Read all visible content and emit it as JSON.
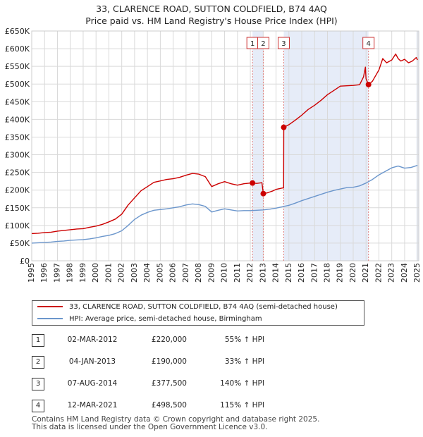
{
  "chart_data": {
    "type": "line",
    "title": "33, CLARENCE ROAD, SUTTON COLDFIELD, B74 4AQ",
    "subtitle": "Price paid vs. HM Land Registry's House Price Index (HPI)",
    "xlabel": "",
    "ylabel": "",
    "xlim": [
      1995,
      2025.1
    ],
    "ylim": [
      0,
      650000
    ],
    "x_ticks": [
      1995,
      1996,
      1997,
      1998,
      1999,
      2000,
      2001,
      2002,
      2003,
      2004,
      2005,
      2006,
      2007,
      2008,
      2009,
      2010,
      2011,
      2012,
      2013,
      2014,
      2015,
      2016,
      2017,
      2018,
      2019,
      2020,
      2021,
      2022,
      2023,
      2024,
      2025
    ],
    "y_ticks": [
      0,
      50000,
      100000,
      150000,
      200000,
      250000,
      300000,
      350000,
      400000,
      450000,
      500000,
      550000,
      600000,
      650000
    ],
    "y_tick_labels": [
      "£0",
      "£50K",
      "£100K",
      "£150K",
      "£200K",
      "£250K",
      "£300K",
      "£350K",
      "£400K",
      "£450K",
      "£500K",
      "£550K",
      "£600K",
      "£650K"
    ],
    "grid": true,
    "shaded_regions": [
      [
        2012.17,
        2013.01
      ],
      [
        2014.6,
        2021.19
      ],
      [
        2024.92,
        2025.1
      ]
    ],
    "series": [
      {
        "name": "33, CLARENCE ROAD, SUTTON COLDFIELD, B74 4AQ (semi-detached house)",
        "color": "#cc0000",
        "x": [
          1995.0,
          1995.5,
          1996.0,
          1996.5,
          1997.0,
          1997.5,
          1998.0,
          1998.5,
          1999.0,
          1999.5,
          2000.0,
          2000.5,
          2001.0,
          2001.5,
          2002.0,
          2002.5,
          2003.0,
          2003.5,
          2004.0,
          2004.5,
          2005.0,
          2005.5,
          2006.0,
          2006.5,
          2007.0,
          2007.5,
          2008.0,
          2008.5,
          2009.0,
          2009.5,
          2010.0,
          2010.5,
          2011.0,
          2011.5,
          2012.0,
          2012.17,
          2012.5,
          2012.9,
          2013.01,
          2013.3,
          2013.7,
          2014.0,
          2014.5,
          2014.59,
          2014.6,
          2015.0,
          2015.5,
          2016.0,
          2016.5,
          2017.0,
          2017.5,
          2018.0,
          2018.5,
          2019.0,
          2019.5,
          2020.0,
          2020.5,
          2020.8,
          2020.95,
          2021.0,
          2021.19,
          2021.5,
          2022.0,
          2022.3,
          2022.6,
          2023.0,
          2023.3,
          2023.5,
          2023.7,
          2024.0,
          2024.3,
          2024.6,
          2024.9,
          2025.0
        ],
        "values": [
          77000,
          78000,
          80000,
          81000,
          84000,
          86000,
          88000,
          90000,
          91000,
          95000,
          98000,
          103000,
          110000,
          118000,
          132000,
          158000,
          178000,
          198000,
          210000,
          222000,
          226000,
          230000,
          232000,
          236000,
          242000,
          247000,
          245000,
          238000,
          210000,
          218000,
          224000,
          218000,
          214000,
          218000,
          220000,
          220000,
          219000,
          221000,
          190000,
          192000,
          197000,
          202000,
          206000,
          206000,
          377500,
          385000,
          398000,
          412000,
          428000,
          440000,
          454000,
          470000,
          482000,
          494000,
          495000,
          496000,
          498000,
          520000,
          548000,
          515000,
          498500,
          508000,
          540000,
          572000,
          560000,
          568000,
          585000,
          572000,
          565000,
          570000,
          560000,
          565000,
          575000,
          568000
        ]
      },
      {
        "name": "HPI: Average price, semi-detached house, Birmingham",
        "color": "#6b96cc",
        "x": [
          1995.0,
          1995.5,
          1996.0,
          1996.5,
          1997.0,
          1997.5,
          1998.0,
          1998.5,
          1999.0,
          1999.5,
          2000.0,
          2000.5,
          2001.0,
          2001.5,
          2002.0,
          2002.5,
          2003.0,
          2003.5,
          2004.0,
          2004.5,
          2005.0,
          2005.5,
          2006.0,
          2006.5,
          2007.0,
          2007.5,
          2008.0,
          2008.5,
          2009.0,
          2009.5,
          2010.0,
          2010.5,
          2011.0,
          2011.5,
          2012.0,
          2012.5,
          2013.0,
          2013.5,
          2014.0,
          2014.5,
          2015.0,
          2015.5,
          2016.0,
          2016.5,
          2017.0,
          2017.5,
          2018.0,
          2018.5,
          2019.0,
          2019.5,
          2020.0,
          2020.5,
          2021.0,
          2021.5,
          2022.0,
          2022.5,
          2023.0,
          2023.5,
          2024.0,
          2024.5,
          2025.0
        ],
        "values": [
          50000,
          51000,
          52000,
          53000,
          55000,
          56000,
          58000,
          59000,
          60000,
          62000,
          65000,
          69000,
          72000,
          77000,
          85000,
          100000,
          117000,
          129000,
          137000,
          143000,
          145000,
          147000,
          150000,
          153000,
          158000,
          161000,
          159000,
          154000,
          138000,
          143000,
          147000,
          144000,
          141000,
          142000,
          142000,
          143000,
          144000,
          146000,
          149000,
          153000,
          157000,
          163000,
          170000,
          176000,
          182000,
          188000,
          194000,
          199000,
          203000,
          207000,
          208000,
          212000,
          220000,
          230000,
          243000,
          253000,
          263000,
          268000,
          262000,
          264000,
          270000
        ]
      }
    ],
    "sale_points": [
      {
        "label": "1",
        "x": 2012.17,
        "y": 220000
      },
      {
        "label": "2",
        "x": 2013.01,
        "y": 190000
      },
      {
        "label": "3",
        "x": 2014.6,
        "y": 377500
      },
      {
        "label": "4",
        "x": 2021.19,
        "y": 498500
      }
    ]
  },
  "legend": {
    "property_label": "33, CLARENCE ROAD, SUTTON COLDFIELD, B74 4AQ (semi-detached house)",
    "hpi_label": "HPI: Average price, semi-detached house, Birmingham"
  },
  "sales": [
    {
      "num": "1",
      "date": "02-MAR-2012",
      "price": "£220,000",
      "hpi": "55% ↑ HPI"
    },
    {
      "num": "2",
      "date": "04-JAN-2013",
      "price": "£190,000",
      "hpi": "33% ↑ HPI"
    },
    {
      "num": "3",
      "date": "07-AUG-2014",
      "price": "£377,500",
      "hpi": "140% ↑ HPI"
    },
    {
      "num": "4",
      "date": "12-MAR-2021",
      "price": "£498,500",
      "hpi": "115% ↑ HPI"
    }
  ],
  "footer": {
    "line1": "Contains HM Land Registry data © Crown copyright and database right 2025.",
    "line2": "This data is licensed under the Open Government Licence v3.0."
  }
}
